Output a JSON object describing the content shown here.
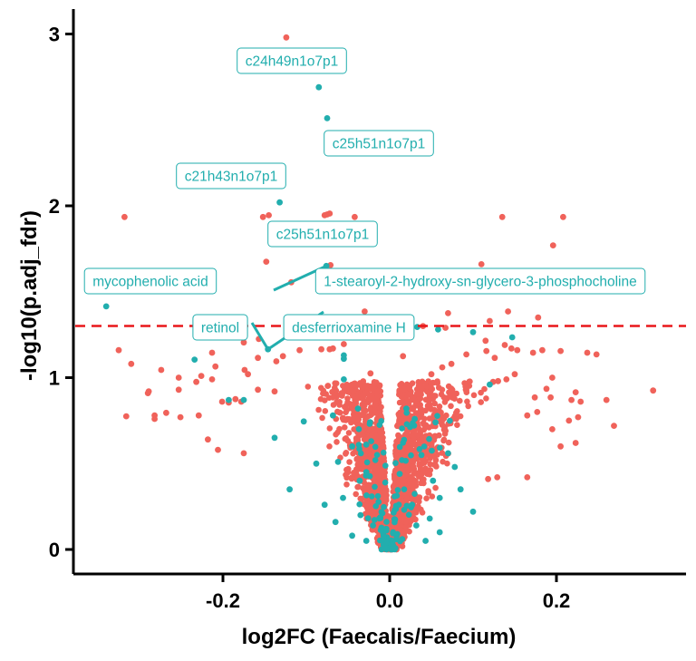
{
  "chart_data": {
    "type": "scatter",
    "title": "",
    "xlabel": "log2FC (Faecalis/Faecium)",
    "ylabel": "-log10(p.adj_fdr)",
    "xlim": [
      -0.375,
      0.355
    ],
    "ylim": [
      -0.15,
      3.15
    ],
    "x_ticks": [
      "-0.2",
      "0.0",
      "0.2"
    ],
    "y_ticks": [
      "0",
      "1",
      "2",
      "3"
    ],
    "threshold_y": 1.301,
    "grid": false,
    "colors": {
      "not_annotated": "#f0625a",
      "annotated": "#22aeae",
      "threshold": "#e8171a",
      "axis": "#000000"
    },
    "series": [
      {
        "points": [
          [
            -0.124,
            2.98
          ],
          [
            -0.072,
            1.955
          ],
          [
            -0.075,
            1.95
          ],
          [
            -0.078,
            1.945
          ],
          [
            -0.145,
            1.945
          ],
          [
            -0.152,
            1.935
          ],
          [
            -0.042,
            1.935
          ],
          [
            -0.318,
            1.935
          ],
          [
            0.135,
            1.935
          ],
          [
            0.208,
            1.935
          ],
          [
            -0.115,
            1.85
          ],
          [
            -0.05,
            1.79
          ],
          [
            0.196,
            1.77
          ],
          [
            -0.148,
            1.675
          ],
          [
            0.11,
            1.66
          ],
          [
            -0.071,
            1.655
          ],
          [
            -0.118,
            1.555
          ],
          [
            -0.062,
            1.535
          ],
          [
            -0.03,
            1.385
          ],
          [
            0.07,
            1.375
          ],
          [
            0.142,
            1.385
          ],
          [
            0.12,
            1.33
          ],
          [
            0.178,
            1.35
          ],
          [
            0.023,
            1.31
          ],
          [
            0.067,
            1.29
          ],
          [
            0.04,
            1.3
          ],
          [
            0.115,
            1.215
          ],
          [
            0.138,
            1.19
          ],
          [
            0.146,
            1.17
          ],
          [
            -0.195,
            1.235
          ],
          [
            -0.157,
            1.225
          ],
          [
            -0.175,
            1.205
          ],
          [
            -0.055,
            1.195
          ],
          [
            -0.068,
            1.17
          ],
          [
            -0.072,
            1.165
          ],
          [
            -0.325,
            1.16
          ],
          [
            -0.108,
            1.16
          ],
          [
            -0.082,
            1.165
          ],
          [
            0.116,
            1.155
          ],
          [
            0.153,
            1.16
          ],
          [
            0.183,
            1.16
          ],
          [
            0.205,
            1.155
          ],
          [
            0.237,
            1.145
          ],
          [
            0.248,
            1.135
          ],
          [
            0.172,
            1.145
          ],
          [
            -0.213,
            1.145
          ],
          [
            -0.128,
            1.125
          ],
          [
            -0.158,
            1.115
          ],
          [
            -0.136,
            1.095
          ],
          [
            0.092,
            1.135
          ],
          [
            0.016,
            1.125
          ],
          [
            0.126,
            1.115
          ],
          [
            -0.31,
            1.08
          ],
          [
            -0.209,
            1.065
          ],
          [
            0.063,
            1.06
          ],
          [
            0.074,
            1.08
          ],
          [
            -0.274,
            1.045
          ],
          [
            -0.174,
            1.045
          ],
          [
            -0.17,
            1.02
          ],
          [
            0.05,
            1.02
          ],
          [
            0.15,
            1.02
          ],
          [
            -0.023,
            1.025
          ],
          [
            -0.253,
            1.0
          ],
          [
            -0.226,
            1.01
          ],
          [
            -0.213,
            0.99
          ],
          [
            0.195,
            1.0
          ],
          [
            0.14,
            0.99
          ],
          [
            -0.232,
            0.975
          ],
          [
            0.052,
            0.97
          ],
          [
            0.124,
            0.975
          ],
          [
            0.13,
            0.98
          ],
          [
            -0.253,
            0.93
          ],
          [
            -0.138,
            0.92
          ],
          [
            -0.158,
            0.93
          ],
          [
            0.188,
            0.935
          ],
          [
            -0.289,
            0.92
          ],
          [
            -0.29,
            0.91
          ],
          [
            0.223,
            0.915
          ],
          [
            0.316,
            0.925
          ],
          [
            -0.185,
            0.875
          ],
          [
            0.174,
            0.885
          ],
          [
            0.193,
            0.885
          ],
          [
            0.218,
            0.87
          ],
          [
            0.26,
            0.87
          ],
          [
            -0.193,
            0.855
          ],
          [
            -0.201,
            0.86
          ],
          [
            -0.178,
            0.86
          ],
          [
            0.229,
            0.86
          ],
          [
            -0.316,
            0.775
          ],
          [
            -0.282,
            0.78
          ],
          [
            -0.268,
            0.795
          ],
          [
            -0.229,
            0.78
          ],
          [
            -0.251,
            0.77
          ],
          [
            0.165,
            0.78
          ],
          [
            0.177,
            0.8
          ],
          [
            0.226,
            0.77
          ],
          [
            -0.282,
            0.76
          ],
          [
            0.215,
            0.75
          ],
          [
            0.195,
            0.7
          ],
          [
            0.269,
            0.72
          ],
          [
            0.223,
            0.62
          ],
          [
            -0.218,
            0.64
          ],
          [
            -0.206,
            0.58
          ],
          [
            -0.175,
            0.56
          ],
          [
            0.205,
            0.6
          ],
          [
            0.165,
            0.42
          ],
          [
            0.118,
            0.41
          ],
          [
            0.129,
            0.42
          ]
        ]
      },
      {
        "points": [
          [
            -0.085,
            2.69
          ],
          [
            -0.075,
            2.51
          ],
          [
            -0.132,
            2.02
          ],
          [
            -0.076,
            1.65
          ],
          [
            -0.34,
            1.415
          ],
          [
            -0.146,
            1.165
          ],
          [
            -0.234,
            1.105
          ],
          [
            0.058,
            1.28
          ],
          [
            -0.055,
            1.13
          ],
          [
            0.033,
            1.295
          ],
          [
            0.1,
            1.265
          ],
          [
            0.147,
            1.235
          ],
          [
            -0.055,
            1.11
          ],
          [
            -0.055,
            0.99
          ],
          [
            0.12,
            0.96
          ],
          [
            -0.175,
            0.87
          ],
          [
            -0.193,
            0.87
          ],
          [
            -0.038,
            0.82
          ],
          [
            -0.068,
            0.78
          ],
          [
            -0.103,
            0.745
          ],
          [
            0.055,
            0.74
          ],
          [
            -0.138,
            0.65
          ],
          [
            0.02,
            0.82
          ],
          [
            0.03,
            0.76
          ],
          [
            -0.028,
            0.61
          ],
          [
            -0.045,
            0.6
          ],
          [
            -0.088,
            0.5
          ],
          [
            -0.062,
            0.51
          ],
          [
            0.038,
            0.55
          ],
          [
            0.07,
            0.56
          ],
          [
            0.078,
            0.48
          ],
          [
            -0.028,
            0.45
          ],
          [
            0.012,
            0.44
          ],
          [
            -0.036,
            0.4
          ],
          [
            0.052,
            0.4
          ],
          [
            -0.12,
            0.35
          ],
          [
            0.085,
            0.35
          ],
          [
            -0.056,
            0.3
          ],
          [
            0.06,
            0.3
          ],
          [
            -0.078,
            0.26
          ],
          [
            0.027,
            0.26
          ],
          [
            0.1,
            0.22
          ],
          [
            -0.035,
            0.2
          ],
          [
            0.048,
            0.18
          ],
          [
            -0.065,
            0.16
          ],
          [
            -0.02,
            0.14
          ],
          [
            0.032,
            0.14
          ],
          [
            -0.045,
            0.08
          ],
          [
            0.06,
            0.1
          ],
          [
            -0.028,
            0.05
          ],
          [
            0.015,
            0.06
          ],
          [
            0.004,
            0.1
          ],
          [
            -0.004,
            0.12
          ],
          [
            0.043,
            0.05
          ]
        ]
      }
    ],
    "annotations": [
      {
        "text": "c24h49n1o7p1",
        "x": -0.085,
        "y": 2.69
      },
      {
        "text": "c25h51n1o7p1",
        "x": -0.075,
        "y": 2.51
      },
      {
        "text": "c21h43n1o7p1",
        "x": -0.132,
        "y": 2.02
      },
      {
        "text": "c25h51n1o7p1",
        "x": -0.076,
        "y": 1.65
      },
      {
        "text": "mycophenolic acid",
        "x": -0.34,
        "y": 1.415
      },
      {
        "text": "1-stearoyl-2-hydroxy-sn-glycero-3-phosphocholine",
        "x": -0.076,
        "y": 1.65
      },
      {
        "text": "retinol",
        "x": -0.146,
        "y": 1.165
      },
      {
        "text": "desferrioxamine H",
        "x": -0.146,
        "y": 1.165
      }
    ]
  }
}
